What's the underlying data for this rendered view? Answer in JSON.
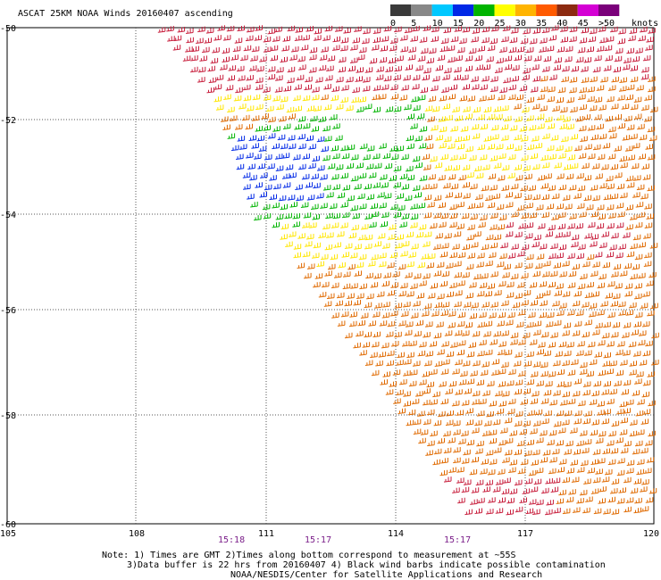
{
  "title": "ASCAT 25KM NOAA Winds 20160407 ascending",
  "legend": {
    "unit_label": "knots",
    "bins": [
      {
        "label": "0",
        "color": "#3a3a3a"
      },
      {
        "label": "5",
        "color": "#888888"
      },
      {
        "label": "10",
        "color": "#00c8ff"
      },
      {
        "label": "15",
        "color": "#0028e6"
      },
      {
        "label": "20",
        "color": "#00b400"
      },
      {
        "label": "25",
        "color": "#ffff00"
      },
      {
        "label": "30",
        "color": "#ffb400"
      },
      {
        "label": "35",
        "color": "#ff5a00"
      },
      {
        "label": "40",
        "color": "#8c2a10"
      },
      {
        "label": "45",
        "color": "#d400d4"
      },
      {
        "label": ">50",
        "color": "#7a007a"
      }
    ]
  },
  "axes": {
    "lon_ticks": [
      "105",
      "108",
      "111",
      "114",
      "117",
      "120"
    ],
    "lat_ticks": [
      "-50",
      "-52",
      "-54",
      "-56",
      "-58",
      "-60"
    ]
  },
  "times": [
    "15:18",
    "15:17",
    "15:17"
  ],
  "notes": {
    "line1": "Note: 1) Times are GMT 2)Times along bottom correspond to measurement at ~55S",
    "line2": "3)Data buffer is 22 hrs from 20160407 4) Black wind barbs indicate possible contamination",
    "line3": "NOAA/NESDIS/Center for Satellite Applications and Research"
  },
  "colors": {
    "calm_blue": "#0028e6",
    "light_green": "#00b400",
    "moderate_yellow": "#ffe600",
    "strong_orange": "#e06a00",
    "gale_red": "#c81e3c"
  }
}
